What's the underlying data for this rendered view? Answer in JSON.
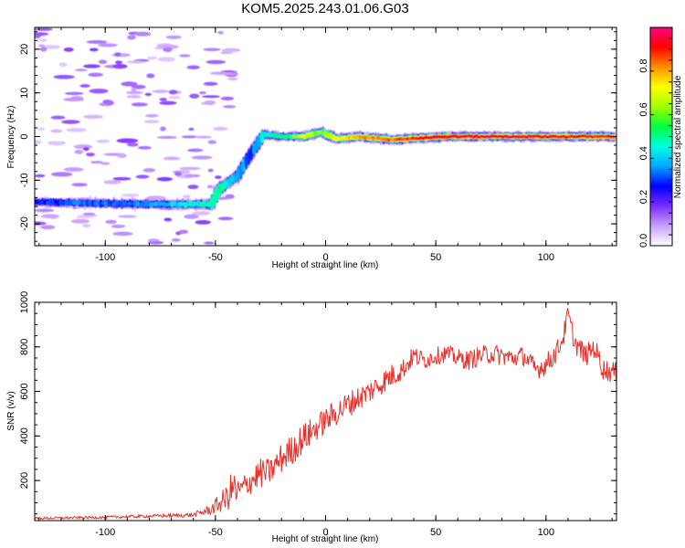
{
  "title": "KOM5.2025.243.01.06.G03",
  "chart_data": [
    {
      "type": "heatmap",
      "xlabel": "Height of straight line (km)",
      "ylabel": "Frequency (Hz)",
      "xlim": [
        -132,
        132
      ],
      "ylim": [
        -25,
        25
      ],
      "xticks": [
        -100,
        -50,
        0,
        50,
        100
      ],
      "yticks": [
        -20,
        -10,
        0,
        10,
        20
      ],
      "ridge": {
        "x": [
          -132,
          -80,
          -52,
          -48,
          -40,
          -34,
          -28,
          -20,
          -10,
          -2,
          5,
          15,
          30,
          55,
          132
        ],
        "frequency": [
          -15,
          -15.5,
          -15.5,
          -12,
          -9,
          -4,
          0.5,
          0,
          0,
          1,
          -0.5,
          0,
          -0.7,
          0,
          0
        ],
        "amplitude": [
          0.3,
          0.35,
          0.5,
          0.5,
          0.4,
          0.3,
          0.45,
          0.5,
          0.7,
          0.6,
          0.7,
          0.8,
          0.85,
          0.95,
          0.9
        ]
      },
      "colorbar": {
        "label": "Normalized spectral amplitude",
        "range": [
          0,
          1
        ],
        "ticks": [
          "0.0",
          "0.2",
          "0.4",
          "0.6",
          "0.8"
        ],
        "colors": [
          "#ffffff",
          "#c8a0ff",
          "#7a2cff",
          "#0000ff",
          "#00a8ff",
          "#00ffe0",
          "#00ff40",
          "#a0ff00",
          "#ffff00",
          "#ff9000",
          "#ff0000",
          "#ff0080"
        ]
      }
    },
    {
      "type": "line",
      "xlabel": "Height of straight line (km)",
      "ylabel": "SNR (v/v)",
      "xlim": [
        -132,
        132
      ],
      "ylim": [
        20,
        1000
      ],
      "xticks": [
        -100,
        -50,
        0,
        50,
        100
      ],
      "yticks": [
        200,
        400,
        600,
        800,
        1000
      ],
      "series": [
        {
          "name": "SNR",
          "color": "#e8302a",
          "x": [
            -132,
            -100,
            -80,
            -60,
            -52,
            -45,
            -42,
            -40,
            -35,
            -30,
            -25,
            -20,
            -15,
            -10,
            -5,
            0,
            10,
            20,
            30,
            35,
            40,
            45,
            50,
            55,
            60,
            65,
            70,
            75,
            80,
            85,
            90,
            95,
            100,
            105,
            108,
            110,
            113,
            118,
            122,
            126,
            132
          ],
          "y": [
            30,
            35,
            40,
            45,
            70,
            120,
            170,
            140,
            190,
            230,
            240,
            300,
            340,
            390,
            430,
            470,
            540,
            600,
            670,
            700,
            760,
            740,
            760,
            770,
            750,
            740,
            760,
            770,
            760,
            750,
            760,
            700,
            720,
            780,
            850,
            950,
            820,
            760,
            800,
            700,
            680
          ],
          "noise": [
            5,
            6,
            7,
            10,
            25,
            60,
            90,
            70,
            60,
            70,
            60,
            70,
            70,
            70,
            60,
            60,
            60,
            55,
            55,
            50,
            45,
            40,
            40,
            40,
            40,
            45,
            45,
            45,
            45,
            45,
            45,
            50,
            50,
            50,
            50,
            40,
            50,
            50,
            50,
            50,
            50
          ]
        }
      ]
    }
  ]
}
